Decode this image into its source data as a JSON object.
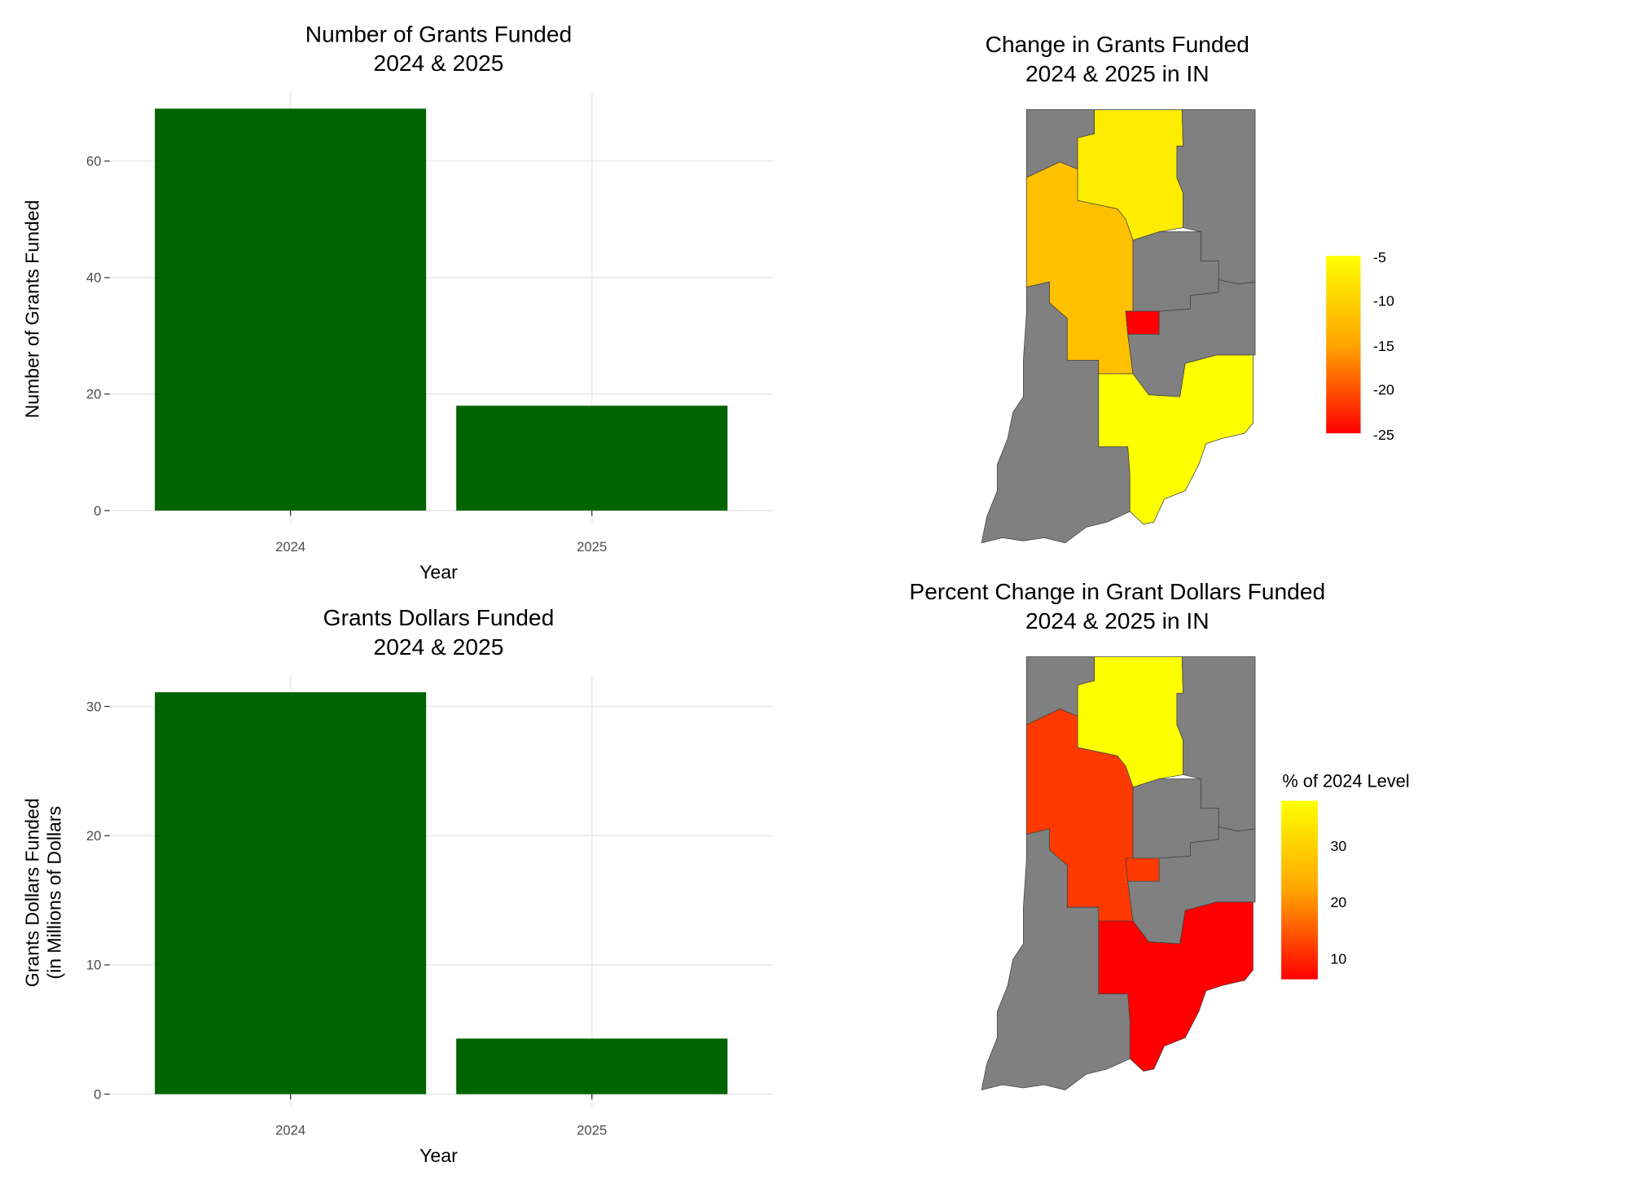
{
  "chart_data": [
    {
      "type": "bar",
      "title": "Number of Grants Funded\n2024 & 2025",
      "title_lines": [
        "Number of Grants Funded",
        "2024 & 2025"
      ],
      "xlabel": "Year",
      "ylabel": "Number of Grants Funded",
      "categories": [
        "2024",
        "2025"
      ],
      "values": [
        69,
        18
      ],
      "ylim": [
        0,
        69
      ],
      "yticks": [
        0,
        20,
        40,
        60
      ],
      "bar_color": "#006400",
      "grid": true
    },
    {
      "type": "bar",
      "title": "Grants Dollars Funded\n2024 & 2025",
      "title_lines": [
        "Grants Dollars Funded",
        "2024 & 2025"
      ],
      "xlabel": "Year",
      "ylabel": "Grants Dollars Funded\n(in Millions of Dollars",
      "ylabel_lines": [
        "Grants Dollars Funded",
        "(in Millions of Dollars"
      ],
      "categories": [
        "2024",
        "2025"
      ],
      "values": [
        31.1,
        4.3
      ],
      "ylim": [
        0,
        31.1
      ],
      "yticks": [
        0,
        10,
        20,
        30
      ],
      "bar_color": "#006400",
      "grid": true
    },
    {
      "type": "map",
      "title_lines": [
        "Change in Grants Funded",
        "2024 & 2025 in IN"
      ],
      "legend": {
        "title": "",
        "ticks": [
          "-5",
          "-10",
          "-15",
          "-20",
          "-25"
        ],
        "range": [
          -25,
          -5
        ],
        "low_color": "#ff0000",
        "high_color": "#ffff00",
        "placement": "right"
      },
      "regions": {
        "north": -7,
        "west": -12,
        "indy": -25,
        "southeast": -5
      },
      "no_data_color": "#808080"
    },
    {
      "type": "map",
      "title_lines": [
        "Percent Change in Grant Dollars Funded",
        "2024 & 2025 in IN"
      ],
      "legend": {
        "title": "% of 2024 Level",
        "ticks": [
          "30",
          "20",
          "10"
        ],
        "range": [
          5.5,
          37
        ],
        "low_color": "#ff0000",
        "high_color": "#ffff00",
        "placement": "right"
      },
      "regions": {
        "north": 37,
        "west": 11,
        "indy": 11,
        "southeast": 5.5
      },
      "no_data_color": "#808080"
    }
  ]
}
